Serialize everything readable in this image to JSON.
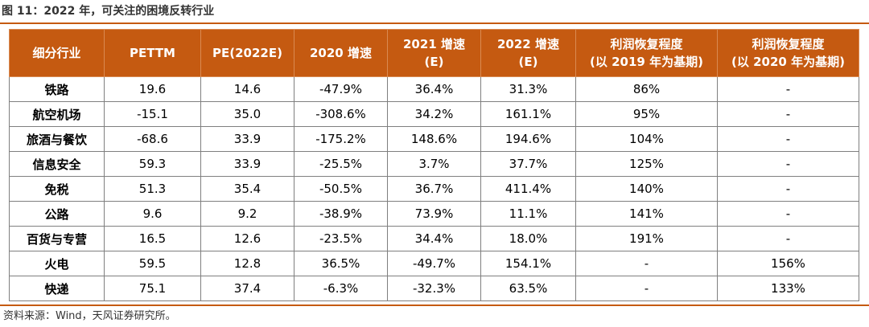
{
  "title": "图 11：2022 年，可关注的困境反转行业",
  "table": {
    "headers": [
      "细分行业",
      "PETTM",
      "PE(2022E)",
      "2020 增速",
      "2021 增速\n(E)",
      "2022 增速\n(E)",
      "利润恢复程度\n(以 2019 年为基期)",
      "利润恢复程度\n(以 2020 年为基期)"
    ],
    "rows": [
      [
        "铁路",
        "19.6",
        "14.6",
        "-47.9%",
        "36.4%",
        "31.3%",
        "86%",
        "-"
      ],
      [
        "航空机场",
        "-15.1",
        "35.0",
        "-308.6%",
        "34.2%",
        "161.1%",
        "95%",
        "-"
      ],
      [
        "旅酒与餐饮",
        "-68.6",
        "33.9",
        "-175.2%",
        "148.6%",
        "194.6%",
        "104%",
        "-"
      ],
      [
        "信息安全",
        "59.3",
        "33.9",
        "-25.5%",
        "3.7%",
        "37.7%",
        "125%",
        "-"
      ],
      [
        "免税",
        "51.3",
        "35.4",
        "-50.5%",
        "36.7%",
        "411.4%",
        "140%",
        "-"
      ],
      [
        "公路",
        "9.6",
        "9.2",
        "-38.9%",
        "73.9%",
        "11.1%",
        "141%",
        "-"
      ],
      [
        "百货与专营",
        "16.5",
        "12.6",
        "-23.5%",
        "34.4%",
        "18.0%",
        "191%",
        "-"
      ],
      [
        "火电",
        "59.5",
        "12.8",
        "36.5%",
        "-49.7%",
        "154.1%",
        "-",
        "156%"
      ],
      [
        "快递",
        "75.1",
        "37.4",
        "-6.3%",
        "-32.3%",
        "63.5%",
        "-",
        "133%"
      ]
    ]
  },
  "source": "资料来源：Wind，天风证券研究所。"
}
